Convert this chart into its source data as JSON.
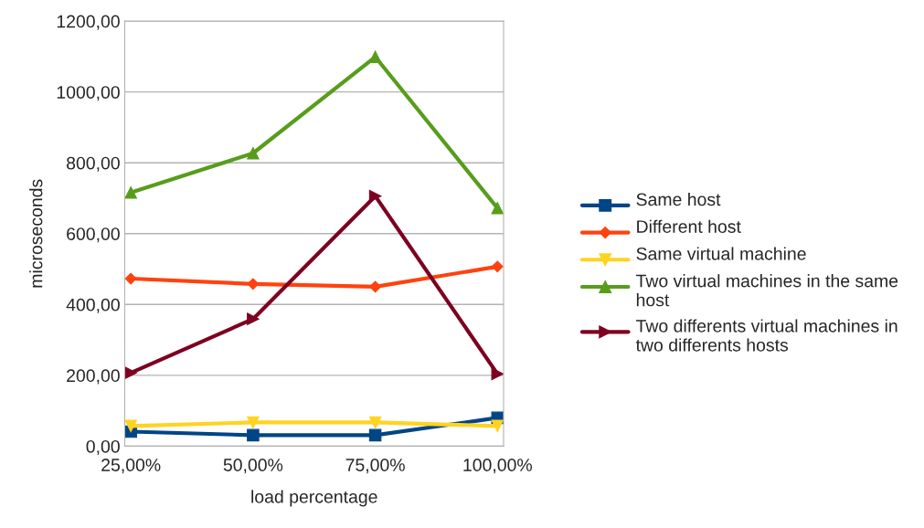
{
  "chart_data": {
    "type": "line",
    "xlabel": "load percentage",
    "ylabel": "microseconds",
    "categories": [
      "25,00%",
      "50,00%",
      "75,00%",
      "100,00%"
    ],
    "series": [
      {
        "name": "Same host",
        "color": "#004586",
        "marker": "square",
        "values": [
          41,
          31,
          31,
          80
        ]
      },
      {
        "name": "Different host",
        "color": "#ff420e",
        "marker": "diamond",
        "values": [
          473,
          458,
          450,
          507
        ]
      },
      {
        "name": "Same virtual machine",
        "color": "#ffd320",
        "marker": "triangle-down",
        "values": [
          57,
          67,
          67,
          57
        ]
      },
      {
        "name": "Two virtual machines in the same host",
        "color": "#579d1c",
        "marker": "triangle",
        "values": [
          716,
          827,
          1099,
          672
        ]
      },
      {
        "name": "Two differents virtual machines in two differents hosts",
        "color": "#7e0021",
        "marker": "triangle-right",
        "values": [
          207,
          359,
          706,
          204
        ]
      }
    ],
    "ylim": [
      0,
      1200
    ],
    "yticks": [
      {
        "value": 0,
        "label": "0,00"
      },
      {
        "value": 200,
        "label": "200,00"
      },
      {
        "value": 400,
        "label": "400,00"
      },
      {
        "value": 600,
        "label": "600,00"
      },
      {
        "value": 800,
        "label": "800,00"
      },
      {
        "value": 1000,
        "label": "1000,00"
      },
      {
        "value": 1200,
        "label": "1200,00"
      }
    ],
    "grid": "y",
    "legend": "right",
    "line_style": "solid"
  }
}
